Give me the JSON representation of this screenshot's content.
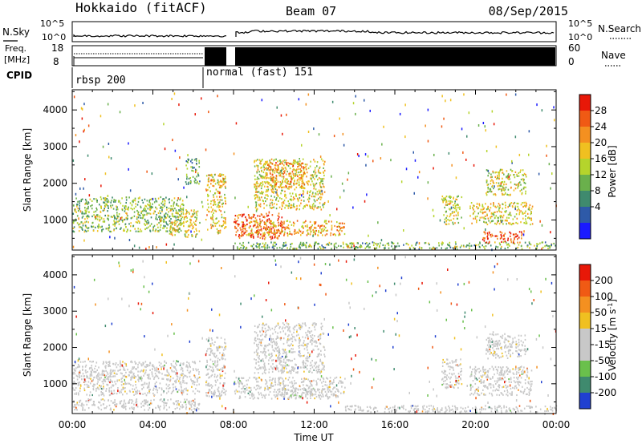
{
  "header": {
    "station": "Hokkaido (fitACF)",
    "beam": "Beam 07",
    "date": "08/Sep/2015"
  },
  "noise_panel": {
    "left_label": "N.Sky",
    "right_label": "N.Search",
    "left_ticks": [
      "10^5",
      "10^0"
    ],
    "right_ticks": [
      "10^5",
      "10^0"
    ]
  },
  "freq_panel": {
    "left_label_line1": "Freq.",
    "left_label_line2": "[MHz]",
    "right_label": "Nave",
    "left_ticks": [
      "18",
      "8"
    ],
    "right_ticks": [
      "60",
      "0"
    ]
  },
  "cpid_panel": {
    "label": "CPID",
    "modes": [
      {
        "name": "rbsp",
        "id": "200",
        "start_hour": 0.0,
        "end_hour": 6.45
      },
      {
        "name": "normal (fast)",
        "id": "151",
        "start_hour": 6.45,
        "end_hour": 24.0
      }
    ]
  },
  "chart_data": [
    {
      "type": "heatmap",
      "panel": "power",
      "ylabel": "Slant Range [km]",
      "xlabel": "",
      "ylim": [
        180,
        4550
      ],
      "xlim_hours": [
        0,
        24
      ],
      "y_ticks": [
        "1000",
        "2000",
        "3000",
        "4000"
      ],
      "colorbar_label": "Power [dB]",
      "colorbar_ticks": [
        "28",
        "24",
        "20",
        "16",
        "12",
        "8",
        "4"
      ],
      "colorbar_range": [
        0,
        30
      ],
      "colors": [
        "#1a1aff",
        "#2e5aa8",
        "#3f8a6e",
        "#6ab04c",
        "#b5d42c",
        "#f0c020",
        "#f49020",
        "#f05a14",
        "#e81808"
      ],
      "data_gap_hours": [
        [
          7.6,
          7.9
        ]
      ],
      "regions": [
        {
          "t0": 0.0,
          "t1": 5.5,
          "r0": 700,
          "r1": 1650,
          "value": 13
        },
        {
          "t0": 4.8,
          "t1": 6.3,
          "r0": 550,
          "r1": 1300,
          "value": 17
        },
        {
          "t0": 5.6,
          "t1": 6.3,
          "r0": 2000,
          "r1": 2700,
          "value": 10
        },
        {
          "t0": 6.6,
          "t1": 7.6,
          "r0": 650,
          "r1": 2300,
          "value": 18
        },
        {
          "t0": 8.0,
          "t1": 10.5,
          "r0": 500,
          "r1": 1200,
          "value": 25
        },
        {
          "t0": 8.5,
          "t1": 13.5,
          "r0": 600,
          "r1": 1000,
          "value": 20
        },
        {
          "t0": 9.0,
          "t1": 12.5,
          "r0": 1300,
          "r1": 2700,
          "value": 17
        },
        {
          "t0": 9.5,
          "t1": 11.5,
          "r0": 1900,
          "r1": 2600,
          "value": 21
        },
        {
          "t0": 8.0,
          "t1": 24.0,
          "r0": 230,
          "r1": 420,
          "value": 12
        },
        {
          "t0": 18.3,
          "t1": 19.3,
          "r0": 900,
          "r1": 1700,
          "value": 15
        },
        {
          "t0": 19.7,
          "t1": 22.8,
          "r0": 900,
          "r1": 1500,
          "value": 17
        },
        {
          "t0": 20.3,
          "t1": 22.3,
          "r0": 400,
          "r1": 700,
          "value": 26
        },
        {
          "t0": 20.5,
          "t1": 22.5,
          "r0": 1700,
          "r1": 2400,
          "value": 16
        }
      ]
    },
    {
      "type": "heatmap",
      "panel": "velocity",
      "ylabel": "Slant Range [km]",
      "xlabel": "Time UT",
      "ylim": [
        180,
        4550
      ],
      "xlim_hours": [
        0,
        24
      ],
      "x_ticks": [
        "00:00",
        "04:00",
        "08:00",
        "12:00",
        "16:00",
        "20:00",
        "00:00"
      ],
      "y_ticks": [
        "1000",
        "2000",
        "3000",
        "4000"
      ],
      "colorbar_label": "Velocity [m s^-1]",
      "colorbar_ticks": [
        "200",
        "100",
        "50",
        "15",
        "-15",
        "-50",
        "-100",
        "-200"
      ],
      "colorbar_range": [
        -250,
        250
      ],
      "colors": [
        "#2040d0",
        "#3f8a6e",
        "#6ac04c",
        "#c8c8c8",
        "#c8c8c8",
        "#f0c020",
        "#f49020",
        "#f05a14",
        "#e81808"
      ],
      "data_gap_hours": [
        [
          7.6,
          7.9
        ]
      ],
      "regions": [
        {
          "t0": 0.0,
          "t1": 6.3,
          "r0": 700,
          "r1": 1650,
          "value": 0
        },
        {
          "t0": 0.0,
          "t1": 6.3,
          "r0": 300,
          "r1": 600,
          "value": -30
        },
        {
          "t0": 6.6,
          "t1": 7.6,
          "r0": 650,
          "r1": 2300,
          "value": 0
        },
        {
          "t0": 8.0,
          "t1": 13.5,
          "r0": 600,
          "r1": 1200,
          "value": 0
        },
        {
          "t0": 9.0,
          "t1": 12.5,
          "r0": 1300,
          "r1": 2700,
          "value": 0
        },
        {
          "t0": 10.0,
          "t1": 12.0,
          "r0": 600,
          "r1": 900,
          "value": -60
        },
        {
          "t0": 13.5,
          "t1": 24.0,
          "r0": 230,
          "r1": 420,
          "value": -40
        },
        {
          "t0": 18.3,
          "t1": 19.3,
          "r0": 900,
          "r1": 1700,
          "value": 0
        },
        {
          "t0": 19.7,
          "t1": 22.8,
          "r0": 700,
          "r1": 1500,
          "value": 0
        },
        {
          "t0": 20.5,
          "t1": 22.5,
          "r0": 1700,
          "r1": 2400,
          "value": 0
        }
      ]
    }
  ]
}
